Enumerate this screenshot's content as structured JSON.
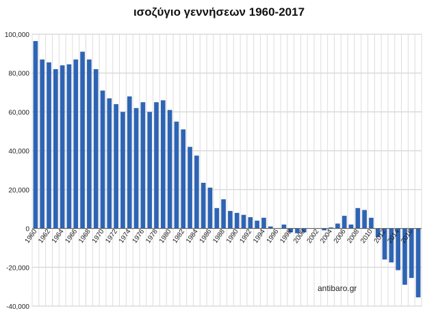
{
  "chart_data": {
    "type": "bar",
    "title": "ισοζύγιο γεννήσεων 1960-2017",
    "xlabel": "",
    "ylabel": "",
    "ylim": [
      -40000,
      100000
    ],
    "yticks": [
      100000,
      80000,
      60000,
      40000,
      20000,
      0,
      -20000,
      -40000
    ],
    "ytick_labels": [
      "100,000",
      "80,000",
      "60,000",
      "40,000",
      "20,000",
      "0",
      "-20,000",
      "-40,000"
    ],
    "xtick_labels": [
      "1960",
      "1962",
      "1964",
      "1966",
      "1968",
      "1970",
      "1972",
      "1974",
      "1976",
      "1978",
      "1980",
      "1982",
      "1984",
      "1986",
      "1988",
      "1990",
      "1992",
      "1994",
      "1996",
      "1998",
      "2000",
      "2002",
      "2004",
      "2006",
      "2008",
      "2010",
      "2012",
      "2014",
      "2016"
    ],
    "categories": [
      "1960",
      "1961",
      "1962",
      "1963",
      "1964",
      "1965",
      "1966",
      "1967",
      "1968",
      "1969",
      "1970",
      "1971",
      "1972",
      "1973",
      "1974",
      "1975",
      "1976",
      "1977",
      "1978",
      "1979",
      "1980",
      "1981",
      "1982",
      "1983",
      "1984",
      "1985",
      "1986",
      "1987",
      "1988",
      "1989",
      "1990",
      "1991",
      "1992",
      "1993",
      "1994",
      "1995",
      "1996",
      "1997",
      "1998",
      "1999",
      "2000",
      "2001",
      "2002",
      "2003",
      "2004",
      "2005",
      "2006",
      "2007",
      "2008",
      "2009",
      "2010",
      "2011",
      "2012",
      "2013",
      "2014",
      "2015",
      "2016",
      "2017"
    ],
    "values": [
      96500,
      87000,
      85500,
      82000,
      84000,
      84500,
      87000,
      91000,
      87000,
      82000,
      71000,
      67000,
      64000,
      60000,
      68000,
      62000,
      65000,
      60000,
      65000,
      66000,
      61000,
      55000,
      51000,
      42000,
      37500,
      23500,
      21000,
      10500,
      15000,
      9000,
      8000,
      7000,
      5800,
      4000,
      5500,
      1000,
      0,
      2000,
      -2000,
      -2500,
      -2000,
      0,
      0,
      -1000,
      500,
      2500,
      6500,
      2000,
      10500,
      9500,
      5500,
      -4500,
      -16000,
      -17500,
      -21500,
      -29000,
      -25500,
      -35500
    ],
    "grid": true,
    "legend": "none",
    "bar_color": "#2e64b4",
    "watermark": "antibaro.gr"
  }
}
